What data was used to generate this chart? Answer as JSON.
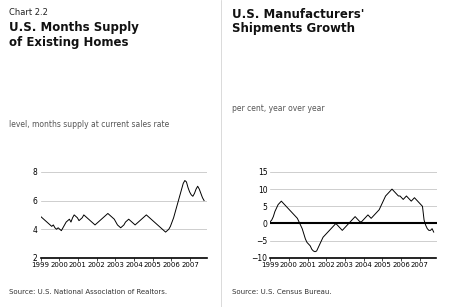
{
  "chart_label": "Chart 2.2",
  "left_title_bold": "U.S. Months Supply\nof Existing Homes",
  "left_subtitle": "level, months supply at current sales rate",
  "left_ylim": [
    2,
    8
  ],
  "left_yticks": [
    2,
    4,
    6,
    8
  ],
  "left_source": "Source: U.S. National Association of Realtors.",
  "right_title_bold": "U.S. Manufacturers'\nShipments Growth",
  "right_subtitle": "per cent, year over year",
  "right_ylim": [
    -10,
    15
  ],
  "right_yticks": [
    -10,
    -5,
    0,
    5,
    10,
    15
  ],
  "right_source": "Source: U.S. Census Bureau.",
  "xtick_labels": [
    "1999",
    "2000",
    "2001",
    "2002",
    "2003",
    "2004",
    "2005",
    "2006",
    "2007"
  ],
  "left_data": [
    4.9,
    4.8,
    4.7,
    4.6,
    4.5,
    4.4,
    4.3,
    4.2,
    4.3,
    4.1,
    4.0,
    4.1,
    4.0,
    3.9,
    4.1,
    4.3,
    4.5,
    4.6,
    4.7,
    4.5,
    4.8,
    5.0,
    4.9,
    4.8,
    4.6,
    4.7,
    4.8,
    5.0,
    4.9,
    4.8,
    4.7,
    4.6,
    4.5,
    4.4,
    4.3,
    4.4,
    4.5,
    4.6,
    4.7,
    4.8,
    4.9,
    5.0,
    5.1,
    5.0,
    4.9,
    4.8,
    4.7,
    4.5,
    4.3,
    4.2,
    4.1,
    4.2,
    4.3,
    4.5,
    4.6,
    4.7,
    4.6,
    4.5,
    4.4,
    4.3,
    4.4,
    4.5,
    4.6,
    4.7,
    4.8,
    4.9,
    5.0,
    4.9,
    4.8,
    4.7,
    4.6,
    4.5,
    4.4,
    4.3,
    4.2,
    4.1,
    4.0,
    3.9,
    3.8,
    3.9,
    4.0,
    4.2,
    4.5,
    4.8,
    5.2,
    5.6,
    6.0,
    6.4,
    6.8,
    7.2,
    7.4,
    7.3,
    6.9,
    6.6,
    6.4,
    6.3,
    6.5,
    6.8,
    7.0,
    6.8,
    6.5,
    6.2,
    6.0
  ],
  "right_data": [
    0.5,
    1.0,
    2.0,
    3.5,
    4.5,
    5.5,
    6.0,
    6.5,
    6.0,
    5.5,
    5.0,
    4.5,
    4.0,
    3.5,
    3.0,
    2.5,
    2.0,
    1.5,
    0.5,
    -0.5,
    -1.5,
    -3.0,
    -4.5,
    -5.5,
    -6.0,
    -6.5,
    -7.5,
    -8.0,
    -8.2,
    -8.0,
    -7.0,
    -6.0,
    -5.0,
    -4.0,
    -3.5,
    -3.0,
    -2.5,
    -2.0,
    -1.5,
    -1.0,
    -0.5,
    0.0,
    -0.5,
    -1.0,
    -1.5,
    -2.0,
    -1.5,
    -1.0,
    -0.5,
    0.0,
    0.5,
    1.0,
    1.5,
    2.0,
    1.5,
    1.0,
    0.5,
    0.5,
    1.0,
    1.5,
    2.0,
    2.5,
    2.0,
    1.5,
    2.0,
    2.5,
    3.0,
    3.5,
    4.0,
    5.0,
    6.0,
    7.0,
    8.0,
    8.5,
    9.0,
    9.5,
    10.0,
    9.5,
    9.0,
    8.5,
    8.0,
    8.0,
    7.5,
    7.0,
    7.5,
    8.0,
    7.5,
    7.0,
    6.5,
    7.0,
    7.5,
    7.0,
    6.5,
    6.0,
    5.5,
    5.0,
    1.0,
    -0.5,
    -1.5,
    -2.0,
    -2.0,
    -1.5,
    -2.5
  ],
  "line_color": "#000000",
  "bg_color": "#ffffff",
  "grid_color": "#bbbbbb"
}
